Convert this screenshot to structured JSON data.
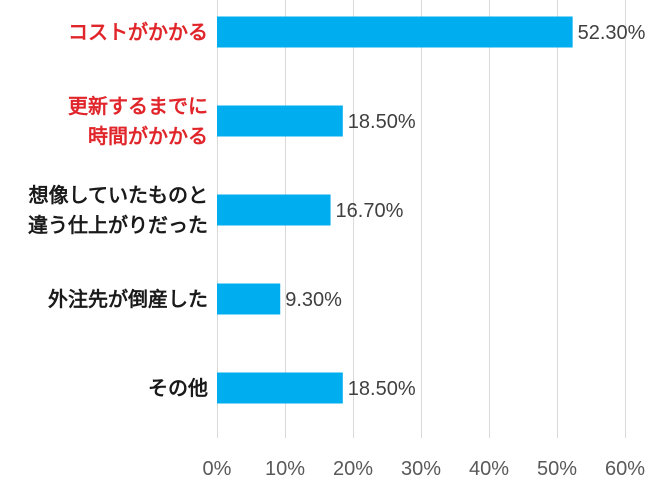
{
  "chart_data": {
    "type": "bar",
    "orientation": "horizontal",
    "categories": [
      [
        "コストがかかる"
      ],
      [
        "更新するまでに",
        "時間がかかる"
      ],
      [
        "想像していたものと",
        "違う仕上がりだった"
      ],
      [
        "外注先が倒産した"
      ],
      [
        "その他"
      ]
    ],
    "values": [
      52.3,
      18.5,
      16.7,
      9.3,
      18.5
    ],
    "value_labels": [
      "52.30%",
      "18.50%",
      "16.70%",
      "9.30%",
      "18.50%"
    ],
    "highlighted": [
      true,
      true,
      false,
      false,
      false
    ],
    "xlim": [
      0,
      60
    ],
    "xticks": [
      0,
      10,
      20,
      30,
      40,
      50,
      60
    ],
    "xtick_labels": [
      "0%",
      "10%",
      "20%",
      "30%",
      "40%",
      "50%",
      "60%"
    ],
    "grid": "vertical",
    "legend": "none",
    "colors": {
      "bar": "#00aeef",
      "highlight_text": "#e0262b",
      "normal_text": "#1a1a1a",
      "grid": "#d9d9d9"
    }
  }
}
